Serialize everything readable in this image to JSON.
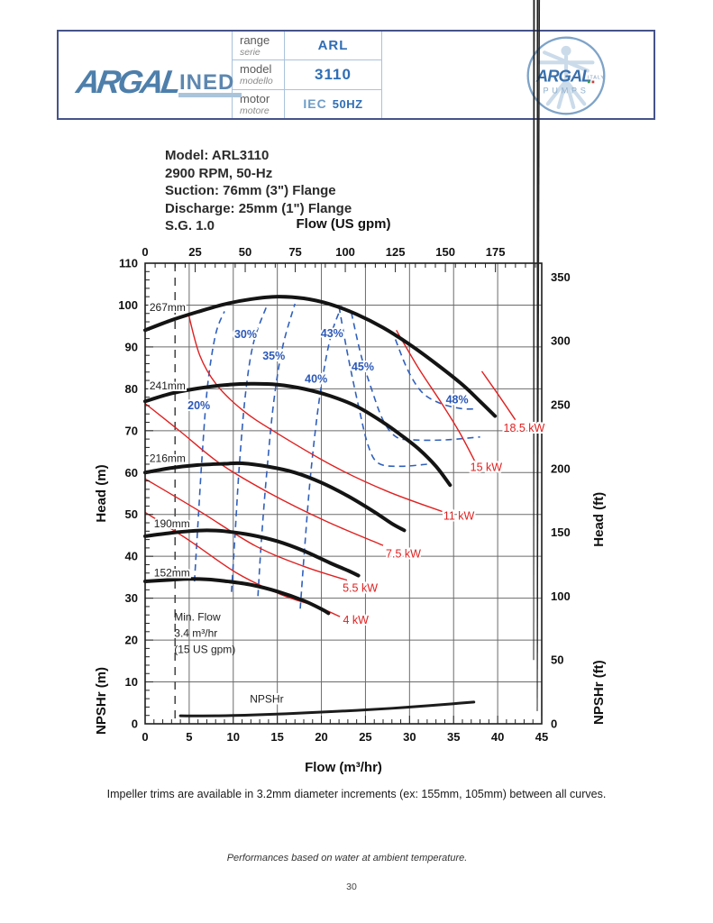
{
  "header": {
    "brand_logo": {
      "text_main": "ARGAL",
      "text_sub": "INED"
    },
    "rows": [
      {
        "label": "range",
        "label_it": "serie",
        "value": "ARL"
      },
      {
        "label": "model",
        "label_it": "modello",
        "value": "3110"
      },
      {
        "label": "motor",
        "label_it": "motore",
        "value": "IEC",
        "value2": "50HZ"
      }
    ],
    "emblem": {
      "brand": "ARGAL",
      "sub": "PUMPS",
      "country": "ITALY"
    }
  },
  "info_block": {
    "lines": [
      "Model: ARL3110",
      "2900 RPM, 50-Hz",
      "Suction: 76mm (3\") Flange",
      "Discharge: 25mm (1\") Flange",
      "S.G. 1.0"
    ]
  },
  "chart_data": {
    "type": "line",
    "axes": {
      "bottom": {
        "label": "Flow (m³/hr)",
        "min": 0,
        "max": 45,
        "ticks": [
          0,
          5,
          10,
          15,
          20,
          25,
          30,
          35,
          40,
          45
        ],
        "minor_step": 1
      },
      "top": {
        "label": "Flow (US gpm)",
        "ticks": [
          0,
          25,
          50,
          75,
          100,
          125,
          150,
          175
        ],
        "minor_step": 5,
        "minor_max": 195,
        "gpm_per_m3hr": 4.4029
      },
      "left": {
        "label_head": "Head (m)",
        "label_npshr": "NPSHr (m)",
        "min": 0,
        "max": 110,
        "ticks": [
          0,
          10,
          20,
          30,
          40,
          50,
          60,
          70,
          80,
          90,
          100,
          110
        ],
        "minor_step": 2
      },
      "right": {
        "label_head": "Head (ft)",
        "label_npshr": "NPSHr (ft)",
        "ticks": [
          0,
          50,
          100,
          150,
          200,
          250,
          300,
          350
        ],
        "minor_step": 10,
        "minor_max": 360,
        "ft_per_m": 3.2808
      }
    },
    "grid": {
      "x_step": 5,
      "y_step": 10
    },
    "impeller_curves": [
      {
        "name": "267mm",
        "label_at": [
          0.5,
          99.4
        ],
        "points": [
          [
            0,
            94
          ],
          [
            3,
            96.4
          ],
          [
            6,
            98.4
          ],
          [
            9,
            100.2
          ],
          [
            12,
            101.4
          ],
          [
            15,
            102
          ],
          [
            18,
            101.6
          ],
          [
            21,
            100.2
          ],
          [
            24,
            97.8
          ],
          [
            27,
            94.6
          ],
          [
            30,
            90.6
          ],
          [
            33,
            86
          ],
          [
            36,
            81
          ],
          [
            38,
            77
          ],
          [
            39.7,
            73.5
          ]
        ]
      },
      {
        "name": "241mm",
        "label_at": [
          0.5,
          80.7
        ],
        "points": [
          [
            0,
            77
          ],
          [
            3,
            78.9
          ],
          [
            6,
            80.1
          ],
          [
            9,
            80.9
          ],
          [
            12,
            81.2
          ],
          [
            15,
            81
          ],
          [
            18,
            80
          ],
          [
            21,
            78.3
          ],
          [
            24,
            75.8
          ],
          [
            27,
            72
          ],
          [
            29,
            69
          ],
          [
            31,
            65.7
          ],
          [
            33,
            61.5
          ],
          [
            34.6,
            57
          ]
        ]
      },
      {
        "name": "216mm",
        "label_at": [
          0.5,
          63.4
        ],
        "points": [
          [
            0,
            60
          ],
          [
            3,
            61.1
          ],
          [
            6,
            61.8
          ],
          [
            9,
            62.1
          ],
          [
            11,
            62.2
          ],
          [
            14,
            61.4
          ],
          [
            17,
            60
          ],
          [
            20,
            57.6
          ],
          [
            23,
            54.4
          ],
          [
            26,
            50.6
          ],
          [
            28,
            47.8
          ],
          [
            29.4,
            46.2
          ]
        ]
      },
      {
        "name": "190mm",
        "label_at": [
          1.0,
          47.8
        ],
        "points": [
          [
            0,
            44.8
          ],
          [
            3,
            45.6
          ],
          [
            5,
            46
          ],
          [
            7,
            46.2
          ],
          [
            9,
            46
          ],
          [
            12,
            45.1
          ],
          [
            15,
            43.6
          ],
          [
            18,
            41.3
          ],
          [
            21,
            38.4
          ],
          [
            23,
            36.6
          ],
          [
            24.2,
            35.4
          ]
        ]
      },
      {
        "name": "152mm",
        "label_at": [
          1.0,
          36.1
        ],
        "points": [
          [
            0,
            34
          ],
          [
            3,
            34.4
          ],
          [
            5,
            34.6
          ],
          [
            7,
            34.5
          ],
          [
            9,
            34.1
          ],
          [
            12,
            33.2
          ],
          [
            15,
            31.6
          ],
          [
            18,
            29.4
          ],
          [
            20,
            27.4
          ],
          [
            20.8,
            26.4
          ]
        ]
      }
    ],
    "efficiency_curves": [
      {
        "name": "20%",
        "label_at": [
          6.1,
          76
        ],
        "points": [
          [
            5.6,
            34
          ],
          [
            6.0,
            48
          ],
          [
            6.5,
            65
          ],
          [
            7.1,
            81
          ],
          [
            8.0,
            93
          ],
          [
            9.0,
            98.5
          ]
        ]
      },
      {
        "name": "30%",
        "label_at": [
          11.4,
          93
        ],
        "points": [
          [
            9.8,
            31.5
          ],
          [
            10.2,
            45
          ],
          [
            10.7,
            62
          ],
          [
            11.4,
            79
          ],
          [
            12.3,
            91
          ],
          [
            13.8,
            99.8
          ]
        ]
      },
      {
        "name": "35%",
        "label_at": [
          14.6,
          87.8
        ],
        "points": [
          [
            12.8,
            30.5
          ],
          [
            13.2,
            44
          ],
          [
            13.8,
            60
          ],
          [
            14.6,
            77
          ],
          [
            15.6,
            90
          ],
          [
            17.0,
            100.3
          ]
        ]
      },
      {
        "name": "40%",
        "label_at": [
          19.4,
          82.3
        ],
        "points": [
          [
            17.6,
            27.5
          ],
          [
            18.1,
            42
          ],
          [
            18.8,
            60
          ],
          [
            19.8,
            78
          ],
          [
            21.0,
            92
          ],
          [
            22.3,
            99.8
          ]
        ]
      },
      {
        "name": "43%",
        "label_at": [
          21.2,
          93.2
        ],
        "points": [
          [
            22.0,
            99.6
          ],
          [
            23.0,
            88
          ],
          [
            24.2,
            76
          ],
          [
            25.3,
            66.5
          ],
          [
            26.5,
            62.2
          ],
          [
            29.0,
            61.5
          ],
          [
            32.0,
            62
          ]
        ]
      },
      {
        "name": "45%",
        "label_at": [
          24.7,
          85.2
        ],
        "points": [
          [
            23.4,
            98.2
          ],
          [
            24.5,
            88
          ],
          [
            25.6,
            80.5
          ],
          [
            27.0,
            72.5
          ],
          [
            28.5,
            68.5
          ],
          [
            30.5,
            67.8
          ],
          [
            34.0,
            67.8
          ],
          [
            38.0,
            68.5
          ]
        ]
      },
      {
        "name": "48%",
        "label_at": [
          35.4,
          77.4
        ],
        "points": [
          [
            28.4,
            91.8
          ],
          [
            29.8,
            84.5
          ],
          [
            31.4,
            79.2
          ],
          [
            33.4,
            76.6
          ],
          [
            35.8,
            75.3
          ],
          [
            37.7,
            75.2
          ]
        ]
      }
    ],
    "power_lines": [
      {
        "name": "4 kW",
        "label_at": [
          23.9,
          24.8
        ],
        "points": [
          [
            0,
            50.5
          ],
          [
            5,
            43.8
          ],
          [
            10.4,
            36
          ],
          [
            15.5,
            30.8
          ],
          [
            19.5,
            28
          ],
          [
            22.1,
            25.6
          ]
        ]
      },
      {
        "name": "5.5 kW",
        "label_at": [
          24.4,
          32.4
        ],
        "points": [
          [
            0,
            58.5
          ],
          [
            6,
            51
          ],
          [
            12.5,
            42.5
          ],
          [
            18,
            37.6
          ],
          [
            22.9,
            34.3
          ]
        ]
      },
      {
        "name": "7.5 kW",
        "label_at": [
          29.3,
          40.6
        ],
        "points": [
          [
            0,
            76.5
          ],
          [
            4,
            69.8
          ],
          [
            8.6,
            62
          ],
          [
            14.2,
            55
          ],
          [
            20.5,
            48.4
          ],
          [
            27,
            42.6
          ]
        ]
      },
      {
        "name": "11 kW",
        "label_at": [
          35.6,
          49.6
        ],
        "points": [
          [
            4.9,
            98
          ],
          [
            6.2,
            88
          ],
          [
            8.1,
            81
          ],
          [
            11,
            75
          ],
          [
            14.5,
            70
          ],
          [
            21.4,
            61.5
          ],
          [
            27.5,
            55.5
          ],
          [
            33.7,
            50.7
          ]
        ]
      },
      {
        "name": "15 kW",
        "label_at": [
          38.7,
          61.2
        ],
        "points": [
          [
            28.5,
            94
          ],
          [
            31,
            85
          ],
          [
            33.5,
            77
          ],
          [
            35.7,
            69.5
          ],
          [
            37.7,
            61.5
          ]
        ]
      },
      {
        "name": "18.5 kW",
        "label_at": [
          43.0,
          70.6
        ],
        "points": [
          [
            38.2,
            84.2
          ],
          [
            40.1,
            78.5
          ],
          [
            42,
            72.6
          ]
        ]
      }
    ],
    "npshr_curve": {
      "name": "NPSHr",
      "label_at": [
        13.8,
        5.9
      ],
      "points": [
        [
          4,
          1.9
        ],
        [
          8,
          1.9
        ],
        [
          12,
          2.1
        ],
        [
          16,
          2.4
        ],
        [
          20,
          2.8
        ],
        [
          24,
          3.2
        ],
        [
          28,
          3.7
        ],
        [
          32,
          4.3
        ],
        [
          35,
          4.8
        ],
        [
          37.3,
          5.2
        ]
      ]
    },
    "min_flow": {
      "flow": 3.4,
      "lines": [
        "Min. Flow",
        "3.4 m³/hr",
        "(15 US gpm)"
      ],
      "label_at": [
        3.3,
        25.5
      ]
    }
  },
  "footer": {
    "note": "Impeller trims are available in 3.2mm diameter increments (ex: 155mm, 105mm) between all curves.",
    "disclaimer": "Performances based on water at ambient temperature.",
    "page_number": "30"
  },
  "colors": {
    "impeller": "#141414",
    "efficiency": "#3060bd",
    "power": "#e02020",
    "grid": "#6b6b6b",
    "border": "#1c1c1c",
    "min_flow": "#4a4a4a",
    "brand_blue": "#4e7fab",
    "value_blue": "#2f6db5"
  }
}
